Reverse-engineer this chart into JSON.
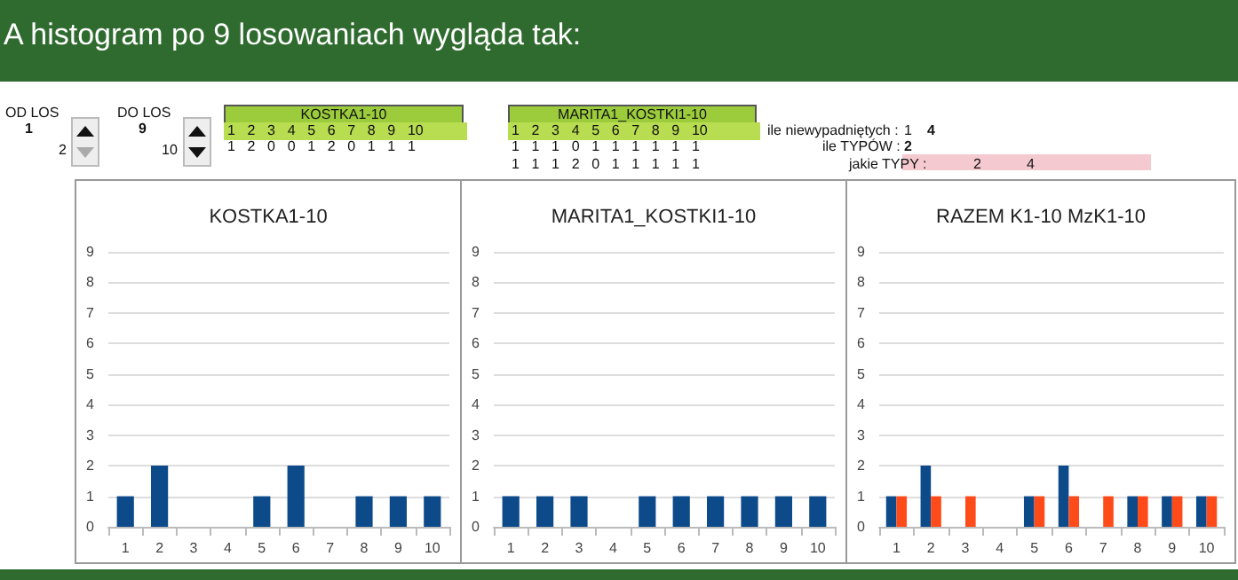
{
  "chart_data": [
    {
      "type": "other",
      "title": "A histogram po 9 losowaniach wygląda tak:",
      "annotations": [
        "OD LOS",
        "1",
        "2",
        "DO LOS",
        "9",
        "10",
        "KOSTKA1-10",
        "1 2 3 4 5 6 7 8 9 10",
        "1 2 0 0 1 2 0 1 1 1",
        "MARITA1_KOSTKI1-10",
        "1 2 3 4 5 6 7 8 9 10",
        "1 1 1 0 1 1 1 1 1 1",
        "1 1 1 2 0 1 1 1 1 1",
        "ile niewypadniętych :",
        "1",
        "4",
        "ile TYPÓW :",
        "2",
        "jakie TYPY :",
        "2",
        "4"
      ]
    },
    {
      "type": "bar",
      "title": "KOSTKA1-10",
      "categories": [
        "1",
        "2",
        "3",
        "4",
        "5",
        "6",
        "7",
        "8",
        "9",
        "10"
      ],
      "values": [
        1,
        2,
        0,
        0,
        1,
        2,
        0,
        1,
        1,
        1
      ],
      "color": "#0d4a8a",
      "ylim": [
        0,
        9
      ],
      "yticks": [
        0,
        1,
        2,
        3,
        4,
        5,
        6,
        7,
        8,
        9
      ],
      "grid": "y"
    },
    {
      "type": "bar",
      "title": "MARITA1_KOSTKI1-10",
      "categories": [
        "1",
        "2",
        "3",
        "4",
        "5",
        "6",
        "7",
        "8",
        "9",
        "10"
      ],
      "values": [
        1,
        1,
        1,
        0,
        1,
        1,
        1,
        1,
        1,
        1
      ],
      "color": "#0d4a8a",
      "ylim": [
        0,
        9
      ],
      "yticks": [
        0,
        1,
        2,
        3,
        4,
        5,
        6,
        7,
        8,
        9
      ],
      "grid": "y"
    },
    {
      "type": "bar",
      "title": "RAZEM K1-10 MzK1-10",
      "categories": [
        "1",
        "2",
        "3",
        "4",
        "5",
        "6",
        "7",
        "8",
        "9",
        "10"
      ],
      "series": [
        {
          "color": "#0d4a8a",
          "values": [
            1,
            2,
            0,
            0,
            1,
            2,
            0,
            1,
            1,
            1
          ]
        },
        {
          "color": "#ff4a1a",
          "values": [
            1,
            1,
            1,
            0,
            1,
            1,
            1,
            1,
            1,
            1
          ]
        }
      ],
      "ylim": [
        0,
        9
      ],
      "yticks": [
        0,
        1,
        2,
        3,
        4,
        5,
        6,
        7,
        8,
        9
      ],
      "grid": "y"
    }
  ]
}
